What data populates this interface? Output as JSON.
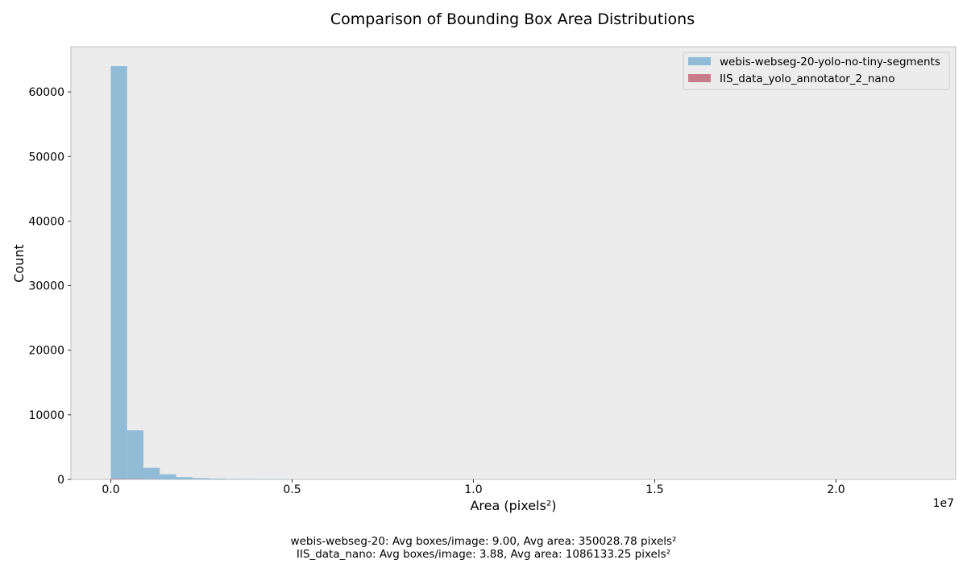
{
  "chart_data": {
    "type": "bar",
    "title": "Comparison of Bounding Box Area Distributions",
    "xlabel": "Area (pixels²)",
    "ylabel": "Count",
    "x_offset_text": "1e7",
    "xlim": [
      -1100000,
      23300000
    ],
    "ylim": [
      0,
      67000
    ],
    "x_ticks": [
      0,
      5000000,
      10000000,
      15000000,
      20000000
    ],
    "x_tick_labels": [
      "0.0",
      "0.5",
      "1.0",
      "1.5",
      "2.0"
    ],
    "y_ticks": [
      0,
      10000,
      20000,
      30000,
      40000,
      50000,
      60000
    ],
    "y_tick_labels": [
      "0",
      "10000",
      "20000",
      "30000",
      "40000",
      "50000",
      "60000"
    ],
    "grid": false,
    "background": "#ececec",
    "legend_position": "top-right",
    "series": [
      {
        "name": "webis-webseg-20-yolo-no-tiny-segments",
        "color": "#92bbd5",
        "bin_edges": [
          0,
          450000,
          900000,
          1350000,
          1800000,
          2250000,
          2700000,
          3150000,
          3600000,
          4050000,
          4500000,
          4950000
        ],
        "counts": [
          64000,
          7600,
          1800,
          800,
          350,
          200,
          120,
          80,
          50,
          35,
          25
        ]
      },
      {
        "name": "IIS_data_yolo_annotator_2_nano",
        "color": "#c97d8a",
        "bin_edges": [
          0,
          300000,
          600000,
          900000,
          1200000
        ],
        "counts": [
          90,
          60,
          40,
          20
        ]
      }
    ]
  },
  "footer": {
    "line1": "webis-webseg-20: Avg boxes/image: 9.00, Avg area: 350028.78 pixels²",
    "line2": "IIS_data_nano: Avg boxes/image: 3.88, Avg area: 1086133.25 pixels²"
  }
}
